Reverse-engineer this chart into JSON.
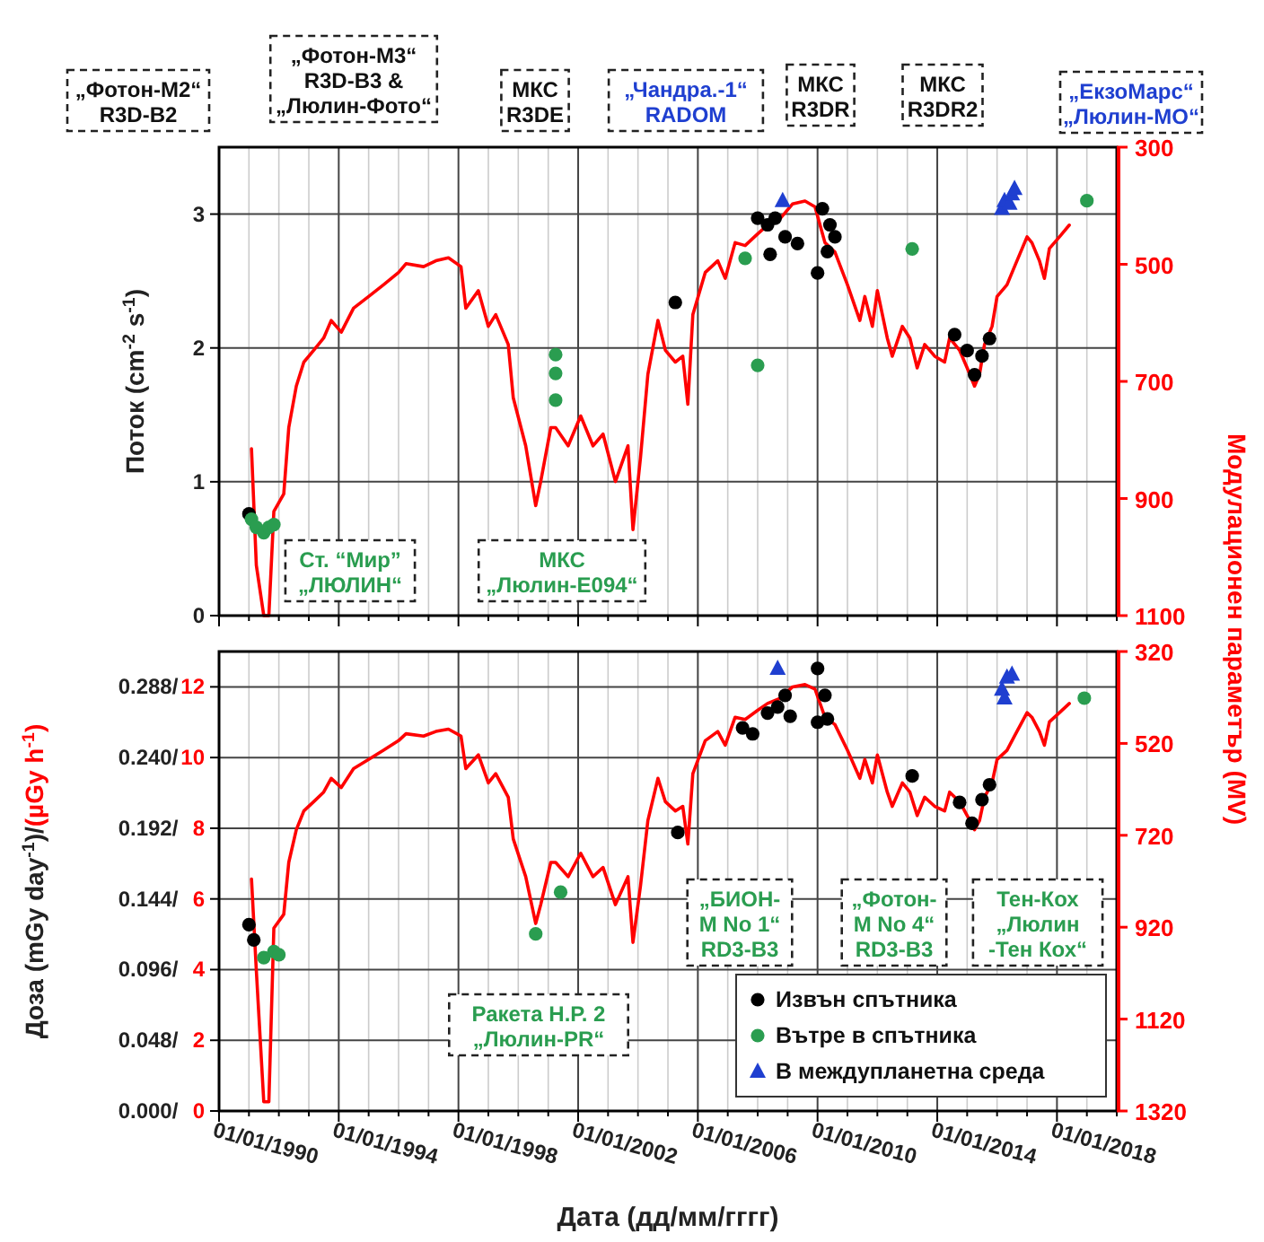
{
  "chart_data": [
    {
      "type": "line",
      "ylabel": "Поток (cm$^{-2}$ s$^{-1}$)",
      "y2label": "Модулационен параметър (MV)",
      "grid": true,
      "tick_labels": "y",
      "legend": false,
      "xlim": [
        "1990-01-01",
        "2020-01-01"
      ],
      "xticks": [
        {
          "value": "1990-01-01",
          "label": null
        },
        {
          "value": "1991-01-01",
          "label": null
        },
        {
          "value": "1992-01-01",
          "label": null
        },
        {
          "value": "1993-01-01",
          "label": null
        },
        {
          "value": "1994-01-01",
          "label": null
        },
        {
          "value": "1995-01-01",
          "label": null
        },
        {
          "value": "1996-01-01",
          "label": null
        },
        {
          "value": "1997-01-01",
          "label": null
        },
        {
          "value": "1998-01-01",
          "label": null
        },
        {
          "value": "1999-01-01",
          "label": null
        },
        {
          "value": "2000-01-01",
          "label": null
        },
        {
          "value": "2001-01-01",
          "label": null
        },
        {
          "value": "2002-01-01",
          "label": null
        },
        {
          "value": "2003-01-01",
          "label": null
        },
        {
          "value": "2004-01-01",
          "label": null
        },
        {
          "value": "2005-01-01",
          "label": null
        },
        {
          "value": "2006-01-01",
          "label": null
        },
        {
          "value": "2007-01-01",
          "label": null
        },
        {
          "value": "2008-01-01",
          "label": null
        },
        {
          "value": "2009-01-01",
          "label": null
        },
        {
          "value": "2010-01-01",
          "label": null
        },
        {
          "value": "2011-01-01",
          "label": null
        },
        {
          "value": "2012-01-01",
          "label": null
        },
        {
          "value": "2013-01-01",
          "label": null
        },
        {
          "value": "2014-01-01",
          "label": null
        },
        {
          "value": "2015-01-01",
          "label": null
        },
        {
          "value": "2016-01-01",
          "label": null
        },
        {
          "value": "2017-01-01",
          "label": null
        },
        {
          "value": "2018-01-01",
          "label": null
        },
        {
          "value": "2019-01-01",
          "label": null
        },
        {
          "value": "2020-01-01",
          "label": null
        }
      ],
      "ylim": [
        0,
        3.5
      ],
      "yticks": [
        0,
        1,
        2,
        3
      ],
      "y2lim": [
        1100,
        300
      ],
      "y2ticks": [
        300,
        500,
        700,
        900,
        1100
      ],
      "annotations": [
        "„Фотон-M2“\nR3D-B2",
        "„Фотон-M3“\nR3D-B3 &\n„Люлин-Фото“",
        "МКС\nR3DE",
        "„Чандра.-1“\nRADOM",
        "МКС\nR3DR",
        "МКС\nR3DR2",
        "„ЕкзоМарс“\n„Люлин-MO“",
        "Ст. “Мир”\n„ЛЮЛИН“",
        "МКС\n„Люлин-Е094“"
      ],
      "series": [
        {
          "axis": "y2",
          "color": "#ff0000",
          "marker": "none",
          "x": [
            "1991-02",
            "1991-04",
            "1991-07",
            "1991-09",
            "1991-11",
            "1992-03",
            "1992-05",
            "1992-08",
            "1992-11",
            "1993-03",
            "1993-07",
            "1993-10",
            "1994-02",
            "1994-07",
            "1995-01",
            "1995-07",
            "1996-01",
            "1996-04",
            "1996-11",
            "1997-04",
            "1997-09",
            "1998-02",
            "1998-04",
            "1998-09",
            "1999-01",
            "1999-04",
            "1999-09",
            "1999-11",
            "2000-04",
            "2000-08",
            "2000-10",
            "2001-02",
            "2001-04",
            "2001-09",
            "2002-02",
            "2002-07",
            "2002-11",
            "2003-04",
            "2003-09",
            "2003-11",
            "2004-02",
            "2004-05",
            "2004-09",
            "2004-12",
            "2005-04",
            "2005-07",
            "2005-09",
            "2005-11",
            "2006-04",
            "2006-09",
            "2006-12",
            "2007-04",
            "2007-08",
            "2008-01",
            "2008-05",
            "2008-10",
            "2009-03",
            "2009-08",
            "2009-12",
            "2010-04",
            "2010-08",
            "2011-01",
            "2011-06",
            "2011-08",
            "2011-11",
            "2012-01",
            "2012-05",
            "2012-07",
            "2012-11",
            "2013-02",
            "2013-05",
            "2013-08",
            "2013-12",
            "2014-04",
            "2014-06",
            "2014-10",
            "2015-01",
            "2015-04",
            "2015-06",
            "2015-08",
            "2015-11",
            "2016-01",
            "2016-05",
            "2016-08",
            "2017-01",
            "2017-03",
            "2017-06",
            "2017-08",
            "2017-10",
            "2018-02",
            "2018-06"
          ],
          "values": [
            815,
            1014,
            1100,
            1100,
            922,
            892,
            779,
            708,
            667,
            647,
            626,
            596,
            616,
            575,
            555,
            535,
            514,
            499,
            504,
            494,
            489,
            504,
            575,
            545,
            606,
            586,
            637,
            728,
            810,
            912,
            871,
            779,
            779,
            810,
            759,
            810,
            790,
            871,
            810,
            953,
            830,
            688,
            596,
            647,
            667,
            657,
            739,
            586,
            514,
            494,
            524,
            463,
            468,
            448,
            433,
            422,
            397,
            392,
            402,
            463,
            479,
            535,
            596,
            555,
            606,
            545,
            626,
            657,
            606,
            626,
            677,
            637,
            657,
            667,
            626,
            647,
            677,
            708,
            688,
            637,
            606,
            555,
            535,
            504,
            453,
            463,
            494,
            524,
            473,
            453,
            433
          ]
        },
        {
          "type": "scatter",
          "color": "#000000",
          "marker": "circle",
          "x": [
            "1991-01",
            "2005-04",
            "2008-01",
            "2008-05",
            "2008-06",
            "2008-08",
            "2008-12",
            "2009-05",
            "2010-01",
            "2010-03",
            "2010-05",
            "2010-06",
            "2010-08",
            "2014-08",
            "2015-01",
            "2015-04",
            "2015-07",
            "2015-10"
          ],
          "values": [
            0.76,
            2.34,
            2.97,
            2.92,
            2.7,
            2.97,
            2.83,
            2.78,
            2.56,
            3.04,
            2.72,
            2.92,
            2.83,
            2.1,
            1.98,
            1.8,
            1.94,
            2.07
          ]
        },
        {
          "type": "scatter",
          "color": "#2a9d50",
          "marker": "circle",
          "x": [
            "1991-02",
            "1991-04",
            "1991-07",
            "1991-09",
            "1991-11",
            "2001-04",
            "2001-04",
            "2001-04",
            "2007-08",
            "2008-01",
            "2013-03",
            "2019-01"
          ],
          "values": [
            0.72,
            0.66,
            0.62,
            0.66,
            0.68,
            1.95,
            1.81,
            1.61,
            2.67,
            1.87,
            2.74,
            3.1
          ]
        },
        {
          "type": "scatter",
          "color": "#1f3fd0",
          "marker": "triangle",
          "x": [
            "2008-11",
            "2016-03",
            "2016-04",
            "2016-06",
            "2016-07",
            "2016-08"
          ],
          "values": [
            3.1,
            3.04,
            3.1,
            3.08,
            3.15,
            3.19
          ]
        }
      ]
    },
    {
      "type": "line",
      "xlabel": "Дата (дд/мм/гггг)",
      "ylabel": "Доза (mGy day$^{-1}$)/",
      "y3label": "(µGy h$^{-1}$)",
      "grid": true,
      "legend": "bottom right",
      "xlim": [
        "1990-01-01",
        "2020-01-01"
      ],
      "xticks": [
        {
          "value": "1990-01-01",
          "label": "01/01/1990"
        },
        {
          "value": "1991-01-01",
          "label": null
        },
        {
          "value": "1992-01-01",
          "label": null
        },
        {
          "value": "1993-01-01",
          "label": null
        },
        {
          "value": "1994-01-01",
          "label": "01/01/1994"
        },
        {
          "value": "1995-01-01",
          "label": null
        },
        {
          "value": "1996-01-01",
          "label": null
        },
        {
          "value": "1997-01-01",
          "label": null
        },
        {
          "value": "1998-01-01",
          "label": "01/01/1998"
        },
        {
          "value": "1999-01-01",
          "label": null
        },
        {
          "value": "2000-01-01",
          "label": null
        },
        {
          "value": "2001-01-01",
          "label": null
        },
        {
          "value": "2002-01-01",
          "label": "01/01/2002"
        },
        {
          "value": "2003-01-01",
          "label": null
        },
        {
          "value": "2004-01-01",
          "label": null
        },
        {
          "value": "2005-01-01",
          "label": null
        },
        {
          "value": "2006-01-01",
          "label": "01/01/2006"
        },
        {
          "value": "2007-01-01",
          "label": null
        },
        {
          "value": "2008-01-01",
          "label": null
        },
        {
          "value": "2009-01-01",
          "label": null
        },
        {
          "value": "2010-01-01",
          "label": "01/01/2010"
        },
        {
          "value": "2011-01-01",
          "label": null
        },
        {
          "value": "2012-01-01",
          "label": null
        },
        {
          "value": "2013-01-01",
          "label": null
        },
        {
          "value": "2014-01-01",
          "label": "01/01/2014"
        },
        {
          "value": "2015-01-01",
          "label": null
        },
        {
          "value": "2016-01-01",
          "label": null
        },
        {
          "value": "2017-01-01",
          "label": null
        },
        {
          "value": "2018-01-01",
          "label": "01/01/2018"
        },
        {
          "value": "2019-01-01",
          "label": null
        },
        {
          "value": "2020-01-01",
          "label": null
        }
      ],
      "ylim": [
        0,
        0.312
      ],
      "yticks": [
        {
          "value": 0,
          "label": "0.000/"
        },
        {
          "value": 0.048,
          "label": "0.048/"
        },
        {
          "value": 0.096,
          "label": "0.096/"
        },
        {
          "value": 0.144,
          "label": "0.144/"
        },
        {
          "value": 0.192,
          "label": "0.192/"
        },
        {
          "value": 0.24,
          "label": "0.240/"
        },
        {
          "value": 0.288,
          "label": "0.288/"
        }
      ],
      "y3lim": [
        0,
        13
      ],
      "y3ticks": [
        0,
        2,
        4,
        6,
        8,
        10,
        12
      ],
      "y2lim": [
        1320,
        320
      ],
      "y2ticks": [
        320,
        520,
        720,
        920,
        1120,
        1320
      ],
      "annotations": [
        "„БИОН-\nM No 1“\nRD3-B3",
        "„Фотон-\nM No 4“\nRD3-B3",
        "Тен-Кох\n„Люлин\n-Тен Кох“",
        "Ракета Н.Р. 2\n„Люлин-PR“"
      ],
      "series": [
        {
          "axis": "y2",
          "color": "#ff0000",
          "marker": "none",
          "x": [
            "1991-02",
            "1991-04",
            "1991-07",
            "1991-09",
            "1991-11",
            "1992-03",
            "1992-05",
            "1992-08",
            "1992-11",
            "1993-03",
            "1993-07",
            "1993-10",
            "1994-02",
            "1994-07",
            "1995-01",
            "1995-07",
            "1996-01",
            "1996-04",
            "1996-11",
            "1997-04",
            "1997-09",
            "1998-02",
            "1998-04",
            "1998-09",
            "1999-01",
            "1999-04",
            "1999-09",
            "1999-11",
            "2000-04",
            "2000-08",
            "2000-10",
            "2001-02",
            "2001-04",
            "2001-09",
            "2002-02",
            "2002-07",
            "2002-11",
            "2003-04",
            "2003-09",
            "2003-11",
            "2004-02",
            "2004-05",
            "2004-09",
            "2004-12",
            "2005-04",
            "2005-07",
            "2005-09",
            "2005-11",
            "2006-04",
            "2006-09",
            "2006-12",
            "2007-04",
            "2007-08",
            "2008-01",
            "2008-05",
            "2008-10",
            "2009-03",
            "2009-08",
            "2009-12",
            "2010-04",
            "2010-08",
            "2011-01",
            "2011-06",
            "2011-08",
            "2011-11",
            "2012-01",
            "2012-05",
            "2012-07",
            "2012-11",
            "2013-02",
            "2013-05",
            "2013-08",
            "2013-12",
            "2014-04",
            "2014-06",
            "2014-10",
            "2015-01",
            "2015-04",
            "2015-06",
            "2015-08",
            "2015-11",
            "2016-01",
            "2016-05",
            "2016-08",
            "2017-01",
            "2017-03",
            "2017-06",
            "2017-08",
            "2017-10",
            "2018-02",
            "2018-06"
          ],
          "values": [
            815,
            1014,
            1300,
            1300,
            922,
            892,
            779,
            708,
            667,
            647,
            626,
            596,
            616,
            575,
            555,
            535,
            514,
            499,
            504,
            494,
            489,
            504,
            575,
            545,
            606,
            586,
            637,
            728,
            810,
            912,
            871,
            779,
            779,
            810,
            759,
            810,
            790,
            871,
            810,
            953,
            830,
            688,
            596,
            647,
            667,
            657,
            739,
            586,
            514,
            494,
            524,
            463,
            468,
            448,
            433,
            422,
            397,
            392,
            402,
            463,
            479,
            535,
            596,
            555,
            606,
            545,
            626,
            657,
            606,
            626,
            677,
            637,
            657,
            667,
            626,
            647,
            677,
            708,
            688,
            637,
            606,
            555,
            535,
            504,
            453,
            463,
            494,
            524,
            473,
            453,
            433
          ]
        },
        {
          "type": "scatter",
          "axis": "y3",
          "name": "Извън спътника",
          "color": "#000000",
          "marker": "circle",
          "x": [
            "1991-01",
            "1991-03",
            "2005-05",
            "2007-07",
            "2007-11",
            "2008-05",
            "2008-09",
            "2008-12",
            "2009-02",
            "2010-01",
            "2010-01",
            "2010-04",
            "2010-05",
            "2013-03",
            "2014-10",
            "2015-03",
            "2015-07",
            "2015-10"
          ],
          "values": [
            5.27,
            4.84,
            7.88,
            10.84,
            10.67,
            11.26,
            11.43,
            11.76,
            11.17,
            12.52,
            11.0,
            11.76,
            11.09,
            9.48,
            8.73,
            8.14,
            8.81,
            9.23
          ]
        },
        {
          "type": "scatter",
          "axis": "y3",
          "name": "Вътре в спътника",
          "color": "#2a9d50",
          "marker": "circle",
          "x": [
            "1991-07",
            "1991-11",
            "1992-01",
            "2000-08",
            "2001-06",
            "2018-12"
          ],
          "values": [
            4.34,
            4.51,
            4.42,
            5.01,
            6.19,
            11.68
          ]
        },
        {
          "type": "scatter",
          "axis": "y3",
          "name": "В междупланетна среда",
          "color": "#1f3fd0",
          "marker": "triangle",
          "x": [
            "2008-09",
            "2016-03",
            "2016-04",
            "2016-05",
            "2016-07"
          ],
          "values": [
            12.52,
            11.93,
            11.68,
            12.27,
            12.35
          ]
        }
      ]
    }
  ]
}
